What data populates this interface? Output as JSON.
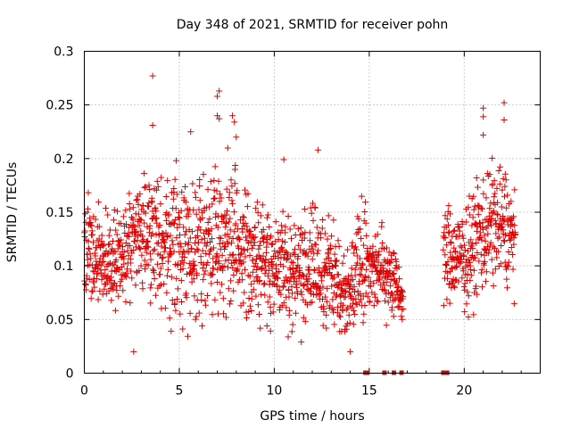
{
  "chart_data": {
    "type": "scatter",
    "title": "Day 348 of 2021, SRMTID for receiver pohn",
    "xlabel": "GPS time / hours",
    "ylabel": "SRMTID / TECUs",
    "xlim": [
      0,
      24
    ],
    "ylim": [
      0,
      0.3
    ],
    "x_ticks": [
      0,
      5,
      10,
      15,
      20
    ],
    "y_ticks": [
      0,
      0.05,
      0.1,
      0.15,
      0.2,
      0.25,
      0.3
    ],
    "x_tick_labels": [
      "0",
      "5",
      "10",
      "15",
      "20"
    ],
    "y_tick_labels": [
      "0",
      "0.05",
      "0.1",
      "0.15",
      "0.2",
      "0.25",
      "0.3"
    ],
    "grid": true,
    "marker": "+",
    "color": "#e00000",
    "series": [
      {
        "name": "SRMTID",
        "coverage": [
          {
            "from": 0.0,
            "to": 16.8
          },
          {
            "from": 18.9,
            "to": 22.7
          }
        ],
        "envelope": [
          {
            "x": 0.0,
            "low": 0.05,
            "high": 0.18
          },
          {
            "x": 1.0,
            "low": 0.05,
            "high": 0.16
          },
          {
            "x": 2.0,
            "low": 0.05,
            "high": 0.16
          },
          {
            "x": 3.0,
            "low": 0.06,
            "high": 0.21
          },
          {
            "x": 4.0,
            "low": 0.04,
            "high": 0.2
          },
          {
            "x": 5.0,
            "low": 0.04,
            "high": 0.2
          },
          {
            "x": 6.0,
            "low": 0.04,
            "high": 0.2
          },
          {
            "x": 7.0,
            "low": 0.04,
            "high": 0.21
          },
          {
            "x": 8.0,
            "low": 0.03,
            "high": 0.21
          },
          {
            "x": 9.0,
            "low": 0.04,
            "high": 0.17
          },
          {
            "x": 10.0,
            "low": 0.04,
            "high": 0.16
          },
          {
            "x": 11.0,
            "low": 0.03,
            "high": 0.16
          },
          {
            "x": 12.0,
            "low": 0.03,
            "high": 0.17
          },
          {
            "x": 13.0,
            "low": 0.03,
            "high": 0.15
          },
          {
            "x": 14.0,
            "low": 0.02,
            "high": 0.12
          },
          {
            "x": 14.5,
            "low": 0.04,
            "high": 0.19
          },
          {
            "x": 15.0,
            "low": 0.05,
            "high": 0.15
          },
          {
            "x": 16.0,
            "low": 0.04,
            "high": 0.15
          },
          {
            "x": 16.8,
            "low": 0.04,
            "high": 0.09
          },
          {
            "x": 18.9,
            "low": 0.05,
            "high": 0.17
          },
          {
            "x": 20.0,
            "low": 0.05,
            "high": 0.16
          },
          {
            "x": 21.0,
            "low": 0.06,
            "high": 0.21
          },
          {
            "x": 22.0,
            "low": 0.07,
            "high": 0.21
          },
          {
            "x": 22.7,
            "low": 0.07,
            "high": 0.18
          }
        ],
        "outliers": [
          {
            "x": 3.6,
            "y": 0.277
          },
          {
            "x": 3.6,
            "y": 0.231
          },
          {
            "x": 7.1,
            "y": 0.263
          },
          {
            "x": 7.0,
            "y": 0.258
          },
          {
            "x": 7.0,
            "y": 0.24
          },
          {
            "x": 7.1,
            "y": 0.237
          },
          {
            "x": 7.8,
            "y": 0.24
          },
          {
            "x": 7.9,
            "y": 0.234
          },
          {
            "x": 8.0,
            "y": 0.22
          },
          {
            "x": 5.6,
            "y": 0.225
          },
          {
            "x": 10.5,
            "y": 0.199
          },
          {
            "x": 12.3,
            "y": 0.208
          },
          {
            "x": 21.0,
            "y": 0.247
          },
          {
            "x": 21.0,
            "y": 0.239
          },
          {
            "x": 22.1,
            "y": 0.252
          },
          {
            "x": 22.1,
            "y": 0.236
          },
          {
            "x": 21.0,
            "y": 0.222
          },
          {
            "x": 2.6,
            "y": 0.02
          },
          {
            "x": 14.0,
            "y": 0.02
          }
        ],
        "zero_flags": [
          14.8,
          14.9,
          15.8,
          16.3,
          16.7,
          18.9,
          19.1
        ]
      }
    ]
  }
}
